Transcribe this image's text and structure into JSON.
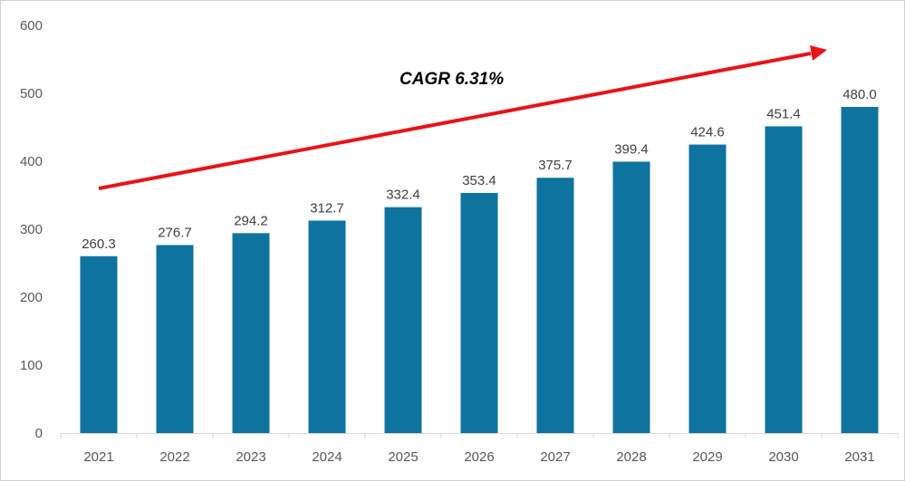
{
  "chart_data": {
    "type": "bar",
    "categories": [
      "2021",
      "2022",
      "2023",
      "2024",
      "2025",
      "2026",
      "2027",
      "2028",
      "2029",
      "2030",
      "2031"
    ],
    "values": [
      260.3,
      276.7,
      294.2,
      312.7,
      332.4,
      353.4,
      375.7,
      399.4,
      424.6,
      451.4,
      480.0
    ],
    "data_labels": [
      "260.3",
      "276.7",
      "294.2",
      "312.7",
      "332.4",
      "353.4",
      "375.7",
      "399.4",
      "424.6",
      "451.4",
      "480.0"
    ],
    "y_ticks": [
      0,
      100,
      200,
      300,
      400,
      500,
      600
    ],
    "ylim": [
      0,
      600
    ],
    "grid": false,
    "legend": "none",
    "annotation": "CAGR 6.31%",
    "bar_color": "#0F73A0",
    "arrow_color": "#E8141A"
  }
}
